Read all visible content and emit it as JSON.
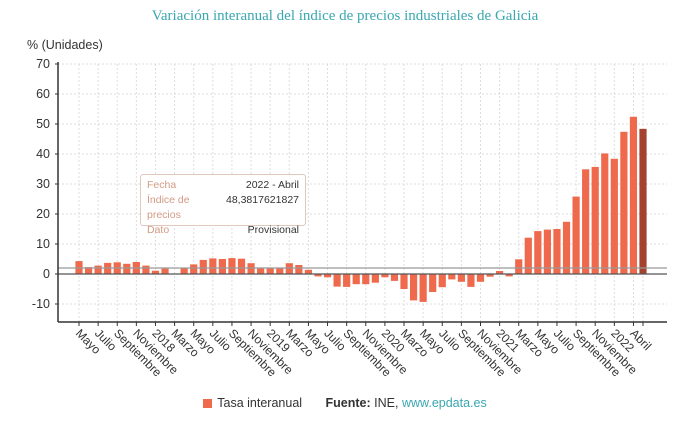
{
  "title": "Variación interanual del índice de precios industriales de Galicia",
  "unit_label": "% (Unidades)",
  "tooltip": {
    "rows": [
      {
        "key": "Fecha",
        "value": "2022 - Abril"
      },
      {
        "key": "Índice de precios",
        "value": "48,3817621827"
      },
      {
        "key": "Dato",
        "value": "Provisional"
      }
    ]
  },
  "legend": {
    "series_label": "Tasa interanual",
    "source_label": "Fuente:",
    "source_text": "INE,",
    "source_link": "www.epdata.es"
  },
  "colors": {
    "bar": "#ef6a4c",
    "highlight_bar": "#a3422f",
    "title": "#3aa7b0"
  },
  "chart_data": {
    "type": "bar",
    "title": "Variación interanual del índice de precios industriales de Galicia",
    "ylabel": "% (Unidades)",
    "ylim": [
      -15,
      70
    ],
    "yticks": [
      -10,
      0,
      10,
      20,
      30,
      40,
      50,
      60,
      70
    ],
    "grid": true,
    "legend_position": "bottom",
    "reference_line": 2,
    "highlighted": "2022 - Abril",
    "x_tick_labels": [
      "Mayo",
      "Julio",
      "Septiembre",
      "Noviembre",
      "2018",
      "Marzo",
      "Mayo",
      "Julio",
      "Septiembre",
      "Noviembre",
      "2019",
      "Marzo",
      "Mayo",
      "Julio",
      "Septiembre",
      "Noviembre",
      "2020",
      "Marzo",
      "Mayo",
      "Julio",
      "Septiembre",
      "Noviembre",
      "2021",
      "Marzo",
      "Mayo",
      "Julio",
      "Septiembre",
      "Noviembre",
      "2022",
      "Abril"
    ],
    "categories": [
      "2017-05",
      "2017-06",
      "2017-07",
      "2017-08",
      "2017-09",
      "2017-10",
      "2017-11",
      "2017-12",
      "2018-01",
      "2018-02",
      "2018-03",
      "2018-04",
      "2018-05",
      "2018-06",
      "2018-07",
      "2018-08",
      "2018-09",
      "2018-10",
      "2018-11",
      "2018-12",
      "2019-01",
      "2019-02",
      "2019-03",
      "2019-04",
      "2019-05",
      "2019-06",
      "2019-07",
      "2019-08",
      "2019-09",
      "2019-10",
      "2019-11",
      "2019-12",
      "2020-01",
      "2020-02",
      "2020-03",
      "2020-04",
      "2020-05",
      "2020-06",
      "2020-07",
      "2020-08",
      "2020-09",
      "2020-10",
      "2020-11",
      "2020-12",
      "2021-01",
      "2021-02",
      "2021-03",
      "2021-04",
      "2021-05",
      "2021-06",
      "2021-07",
      "2021-08",
      "2021-09",
      "2021-10",
      "2021-11",
      "2021-12",
      "2022-01",
      "2022-02",
      "2022-03",
      "2022-04"
    ],
    "series": [
      {
        "name": "Tasa interanual",
        "values": [
          4.3,
          2.3,
          2.8,
          3.7,
          3.9,
          3.4,
          4.0,
          2.8,
          1.1,
          1.8,
          0.1,
          2.1,
          3.2,
          4.7,
          5.2,
          5.0,
          5.3,
          5.1,
          3.6,
          2.0,
          2.0,
          2.0,
          3.6,
          3.0,
          1.4,
          -0.8,
          -1.1,
          -4.2,
          -4.3,
          -3.4,
          -3.4,
          -2.9,
          -1.1,
          -2.3,
          -5.0,
          -8.8,
          -9.3,
          -6.0,
          -4.4,
          -1.8,
          -2.6,
          -4.3,
          -2.6,
          -0.9,
          1.0,
          -0.8,
          4.9,
          12.1,
          14.3,
          14.8,
          15.0,
          17.4,
          25.8,
          34.9,
          35.7,
          40.2,
          38.4,
          47.4,
          52.4,
          48.38
        ]
      }
    ]
  }
}
